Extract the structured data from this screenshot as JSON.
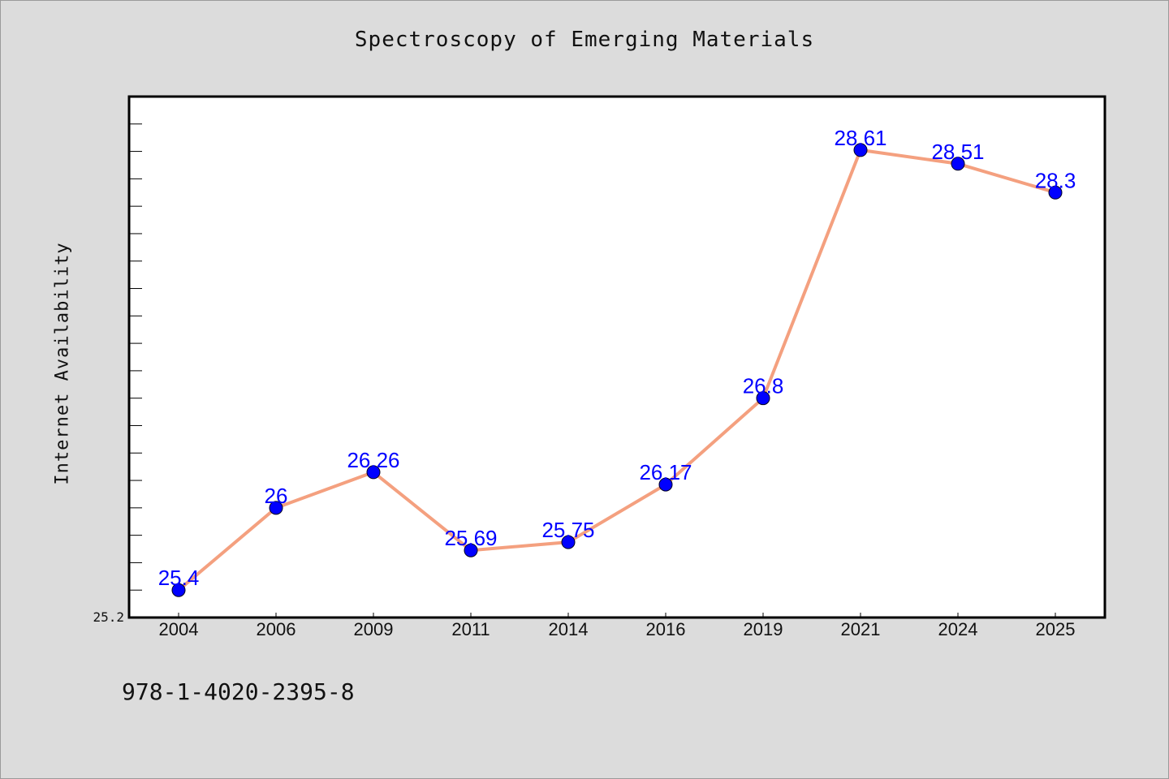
{
  "chart_data": {
    "type": "line",
    "title": "Spectroscopy of Emerging Materials",
    "xlabel": "",
    "ylabel": "Internet Availability",
    "categories": [
      "2004",
      "2006",
      "2009",
      "2011",
      "2014",
      "2016",
      "2019",
      "2021",
      "2024",
      "2025"
    ],
    "series": [
      {
        "values": [
          25.4,
          26,
          26.26,
          25.69,
          25.75,
          26.17,
          26.8,
          28.61,
          28.51,
          28.3
        ]
      }
    ],
    "data_labels": [
      "25.4",
      "26",
      "26.26",
      "25.69",
      "25.75",
      "26.17",
      "26.8",
      "28.61",
      "28.51",
      "28.3"
    ],
    "ylim": [
      25.2,
      29.0
    ],
    "y_tick_label": "25.2",
    "grid": false,
    "line_color": "#f4a07f",
    "marker_color": "#0000ff",
    "label_color": "#0000ff"
  },
  "footer": {
    "isbn": "978-1-4020-2395-8"
  }
}
